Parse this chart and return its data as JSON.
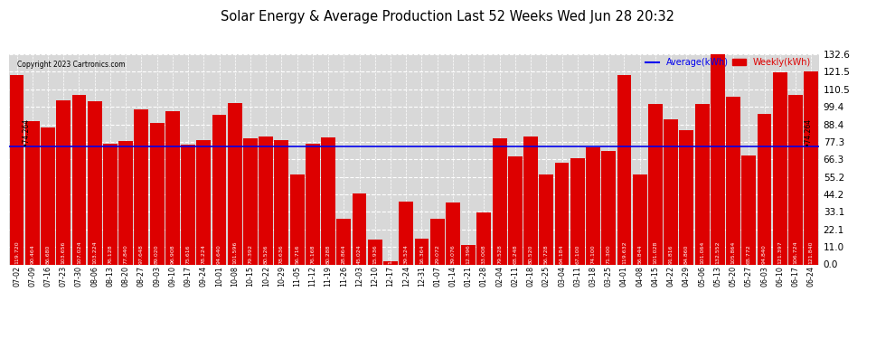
{
  "title": "Solar Energy & Average Production Last 52 Weeks Wed Jun 28 20:32",
  "copyright": "Copyright 2023 Cartronics.com",
  "legend_avg": "Average(kWh)",
  "legend_weekly": "Weekly(kWh)",
  "average_value": 74.264,
  "bar_color": "#dd0000",
  "avg_line_color": "#0000ee",
  "avg_annotation_color": "#000000",
  "background_color": "#ffffff",
  "plot_bg_color": "#d8d8d8",
  "grid_color": "#ffffff",
  "ylim": [
    0.0,
    132.6
  ],
  "yticks": [
    0.0,
    11.0,
    22.1,
    33.1,
    44.2,
    55.2,
    66.3,
    77.3,
    88.4,
    99.4,
    110.5,
    121.5,
    132.6
  ],
  "categories": [
    "07-02",
    "07-09",
    "07-16",
    "07-23",
    "07-30",
    "08-06",
    "08-13",
    "08-20",
    "08-27",
    "09-03",
    "09-10",
    "09-17",
    "09-24",
    "10-01",
    "10-08",
    "10-15",
    "10-22",
    "10-29",
    "11-05",
    "11-12",
    "11-19",
    "11-26",
    "12-03",
    "12-10",
    "12-17",
    "12-24",
    "12-31",
    "01-07",
    "01-14",
    "01-21",
    "01-28",
    "02-04",
    "02-11",
    "02-18",
    "02-25",
    "03-04",
    "03-11",
    "03-18",
    "03-25",
    "04-01",
    "04-08",
    "04-15",
    "04-22",
    "04-29",
    "05-06",
    "05-13",
    "05-20",
    "05-27",
    "06-03",
    "06-10",
    "06-17",
    "06-24"
  ],
  "values": [
    119.72,
    90.464,
    86.68,
    103.656,
    107.024,
    103.224,
    76.128,
    77.84,
    97.648,
    89.02,
    96.908,
    75.616,
    78.224,
    94.64,
    101.596,
    79.392,
    80.526,
    78.636,
    56.716,
    76.168,
    80.288,
    28.864,
    45.024,
    15.936,
    1.928,
    39.524,
    16.364,
    29.072,
    39.076,
    12.396,
    33.008,
    79.528,
    68.248,
    80.52,
    56.728,
    64.184,
    67.1,
    74.1,
    71.3,
    119.632,
    56.844,
    101.028,
    91.816,
    84.86,
    101.064,
    132.552,
    105.864,
    68.772,
    94.84,
    121.397,
    106.724,
    121.84
  ]
}
